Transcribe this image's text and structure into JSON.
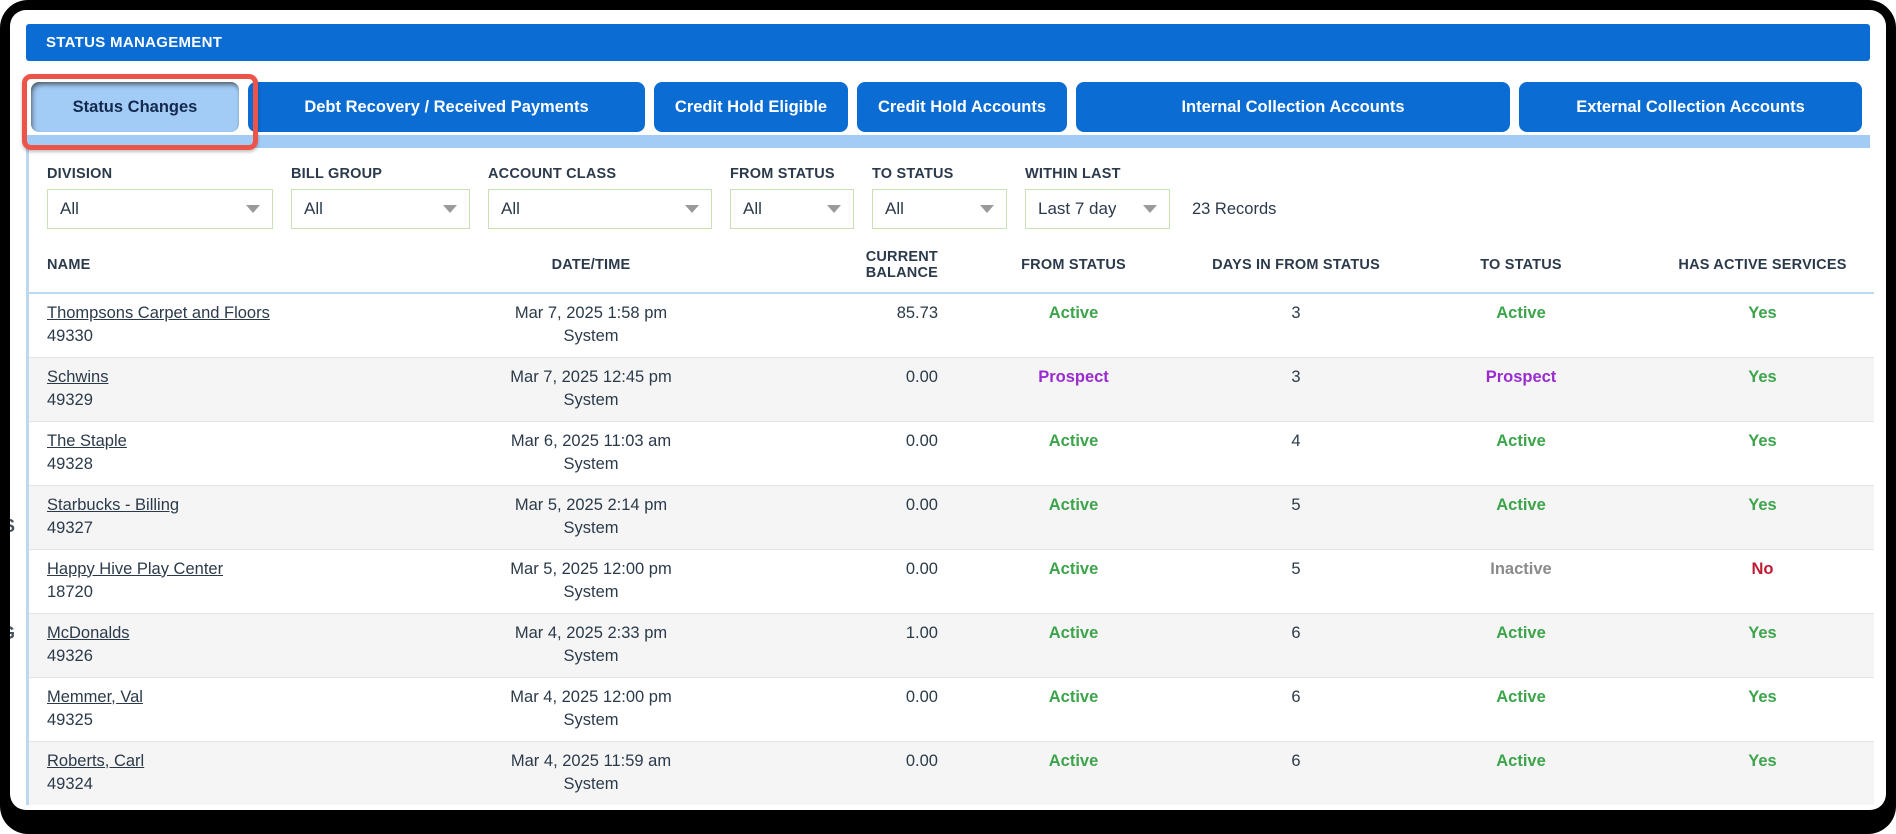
{
  "header": {
    "title": "STATUS MANAGEMENT"
  },
  "tabs": [
    {
      "label": "Status Changes",
      "active": true,
      "annotated": true
    },
    {
      "label": "Debt Recovery / Received Payments",
      "active": false
    },
    {
      "label": "Credit Hold Eligible",
      "active": false
    },
    {
      "label": "Credit Hold Accounts",
      "active": false
    },
    {
      "label": "Internal Collection Accounts",
      "active": false
    },
    {
      "label": "External Collection Accounts",
      "active": false
    }
  ],
  "filters": [
    {
      "label": "DIVISION",
      "value": "All"
    },
    {
      "label": "BILL GROUP",
      "value": "All"
    },
    {
      "label": "ACCOUNT CLASS",
      "value": "All"
    },
    {
      "label": "FROM STATUS",
      "value": "All"
    },
    {
      "label": "TO STATUS",
      "value": "All"
    },
    {
      "label": "WITHIN LAST",
      "value": "Last 7 day"
    }
  ],
  "records_count": "23 Records",
  "table": {
    "columns": [
      "NAME",
      "DATE/TIME",
      "CURRENT BALANCE",
      "FROM STATUS",
      "DAYS IN FROM STATUS",
      "TO STATUS",
      "HAS ACTIVE SERVICES"
    ],
    "rows": [
      {
        "name": "Thompsons Carpet and Floors",
        "account": "49330",
        "datetime": "Mar 7, 2025 1:58 pm",
        "source": "System",
        "balance": "85.73",
        "from_status": "Active",
        "days": "3",
        "to_status": "Active",
        "has_active": "Yes"
      },
      {
        "name": "Schwins",
        "account": "49329",
        "datetime": "Mar 7, 2025 12:45 pm",
        "source": "System",
        "balance": "0.00",
        "from_status": "Prospect",
        "days": "3",
        "to_status": "Prospect",
        "has_active": "Yes"
      },
      {
        "name": "The Staple",
        "account": "49328",
        "datetime": "Mar 6, 2025 11:03 am",
        "source": "System",
        "balance": "0.00",
        "from_status": "Active",
        "days": "4",
        "to_status": "Active",
        "has_active": "Yes"
      },
      {
        "name": "Starbucks - Billing",
        "account": "49327",
        "datetime": "Mar 5, 2025 2:14 pm",
        "source": "System",
        "balance": "0.00",
        "from_status": "Active",
        "days": "5",
        "to_status": "Active",
        "has_active": "Yes"
      },
      {
        "name": "Happy Hive Play Center",
        "account": "18720",
        "datetime": "Mar 5, 2025 12:00 pm",
        "source": "System",
        "balance": "0.00",
        "from_status": "Active",
        "days": "5",
        "to_status": "Inactive",
        "has_active": "No"
      },
      {
        "name": "McDonalds",
        "account": "49326",
        "datetime": "Mar 4, 2025 2:33 pm",
        "source": "System",
        "balance": "1.00",
        "from_status": "Active",
        "days": "6",
        "to_status": "Active",
        "has_active": "Yes"
      },
      {
        "name": "Memmer, Val",
        "account": "49325",
        "datetime": "Mar 4, 2025 12:00 pm",
        "source": "System",
        "balance": "0.00",
        "from_status": "Active",
        "days": "6",
        "to_status": "Active",
        "has_active": "Yes"
      },
      {
        "name": "Roberts, Carl",
        "account": "49324",
        "datetime": "Mar 4, 2025 11:59 am",
        "source": "System",
        "balance": "0.00",
        "from_status": "Active",
        "days": "6",
        "to_status": "Active",
        "has_active": "Yes"
      }
    ]
  },
  "edge_fragments": {
    "upper": "S",
    "lower": "G"
  },
  "colors": {
    "header_blue": "#0b6cd3",
    "active_tab_bg": "#a2ccf6",
    "annotation_red": "#ed5449",
    "status_green": "#3da44b",
    "status_purple": "#9a2bd0",
    "status_gray": "#8b8b8b",
    "status_red": "#c01b33",
    "dropdown_border_green": "#c9e2b3"
  }
}
